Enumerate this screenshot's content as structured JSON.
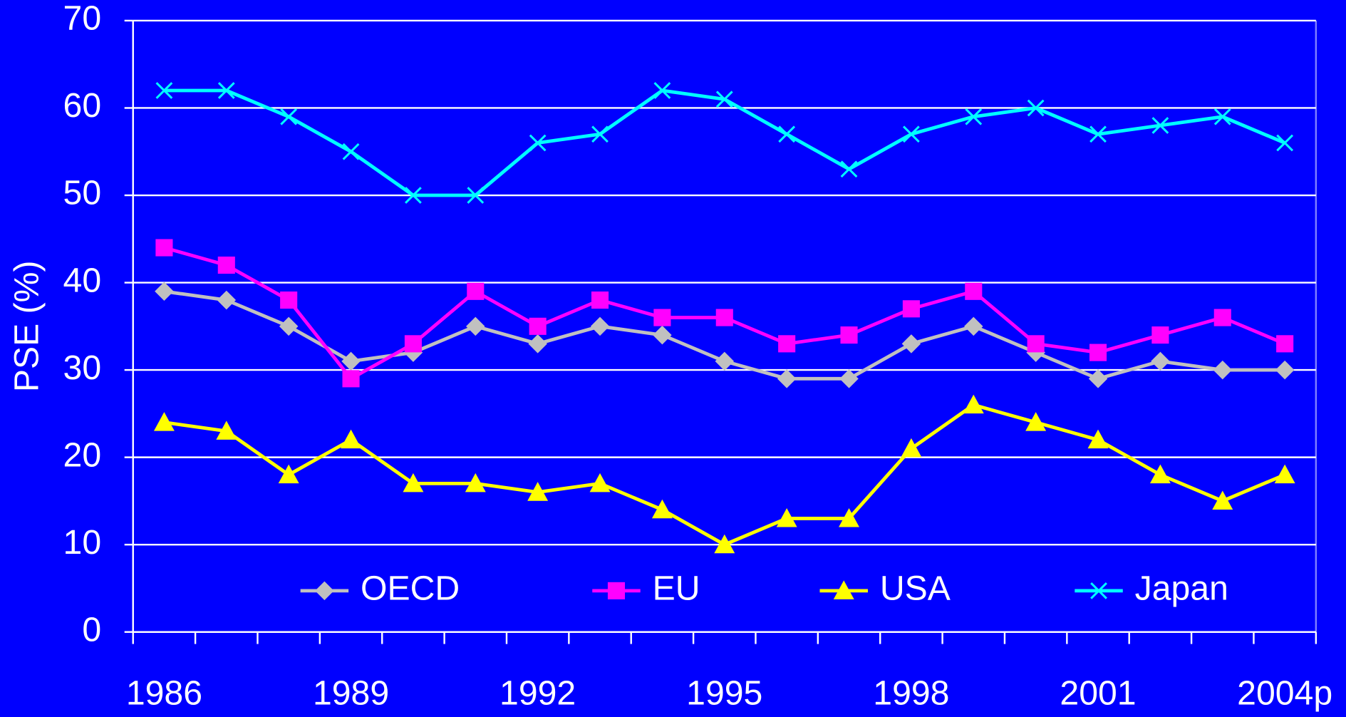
{
  "chart_data": {
    "type": "line",
    "y_label": "PSE (%)",
    "categories": [
      "1986",
      null,
      null,
      "1989",
      null,
      null,
      "1992",
      null,
      null,
      "1995",
      null,
      null,
      "1998",
      null,
      null,
      "2001",
      null,
      null,
      "2004p"
    ],
    "series": [
      {
        "name": "OECD",
        "color": "#c0c0c0",
        "marker": "diamond",
        "values": [
          39,
          38,
          35,
          31,
          32,
          35,
          33,
          35,
          34,
          31,
          29,
          29,
          33,
          35,
          32,
          29,
          31,
          30,
          30
        ]
      },
      {
        "name": "EU",
        "color": "#ff00ff",
        "marker": "square",
        "values": [
          44,
          42,
          38,
          29,
          33,
          39,
          35,
          38,
          36,
          36,
          33,
          34,
          37,
          39,
          33,
          32,
          34,
          36,
          33
        ]
      },
      {
        "name": "USA",
        "color": "#ffff00",
        "marker": "triangle",
        "values": [
          24,
          23,
          18,
          22,
          17,
          17,
          16,
          17,
          14,
          10,
          13,
          13,
          21,
          26,
          24,
          22,
          18,
          15,
          18
        ]
      },
      {
        "name": "Japan",
        "color": "#00ffff",
        "marker": "x",
        "values": [
          62,
          62,
          59,
          55,
          50,
          50,
          56,
          57,
          62,
          61,
          57,
          53,
          57,
          59,
          60,
          57,
          58,
          59,
          56
        ]
      }
    ],
    "ylim": [
      0,
      70
    ],
    "yticks": [
      0,
      10,
      20,
      30,
      40,
      50,
      60,
      70
    ],
    "grid": true,
    "legend": "bottom"
  }
}
